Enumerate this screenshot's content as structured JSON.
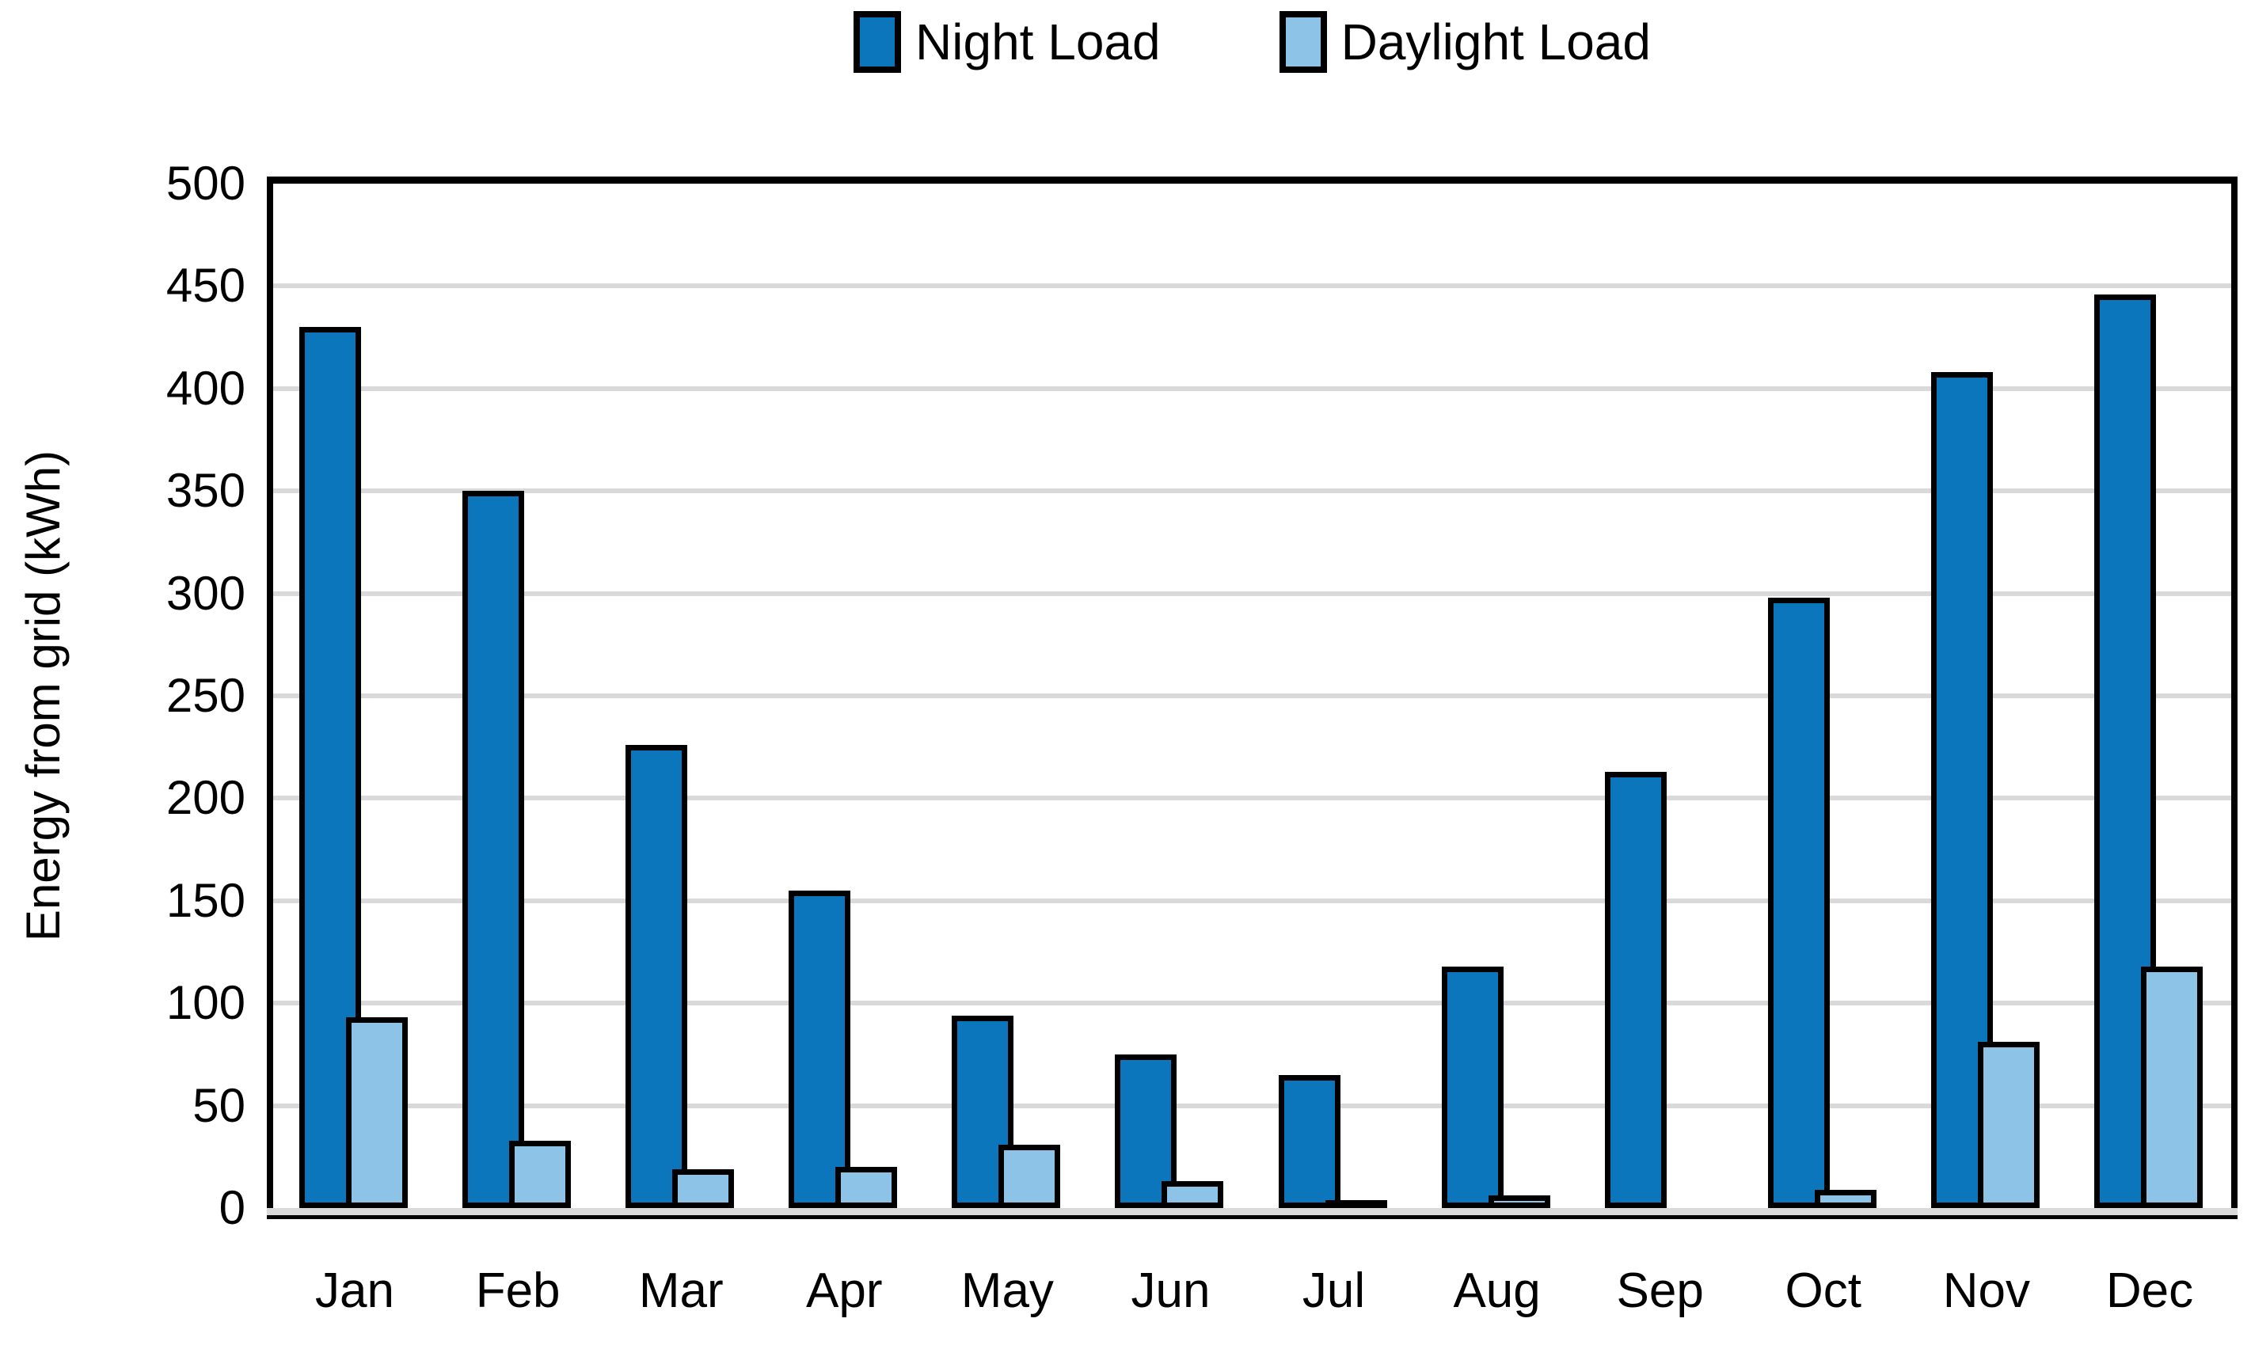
{
  "chart_data": {
    "type": "bar",
    "title": "",
    "xlabel": "",
    "ylabel": "Energy from grid (kWh)",
    "categories": [
      "Jan",
      "Feb",
      "Mar",
      "Apr",
      "May",
      "Jun",
      "Jul",
      "Aug",
      "Sep",
      "Oct",
      "Nov",
      "Dec"
    ],
    "series": [
      {
        "name": "Night Load",
        "color": "#0B76BC",
        "values": [
          430,
          350,
          226,
          155,
          94,
          75,
          65,
          118,
          213,
          298,
          408,
          446
        ]
      },
      {
        "name": "Daylight Load",
        "color": "#8DC3E7",
        "values": [
          93,
          33,
          19,
          20,
          31,
          13,
          3,
          6,
          0,
          9,
          81,
          118
        ]
      }
    ],
    "ylim": [
      0,
      500
    ],
    "ytick_step": 50,
    "yticks": [
      0,
      50,
      100,
      150,
      200,
      250,
      300,
      350,
      400,
      450,
      500
    ],
    "grid": "horizontal",
    "gridline_color": "#D9D9D9",
    "bar_border_color": "#000000",
    "legend_position": "top-center"
  }
}
